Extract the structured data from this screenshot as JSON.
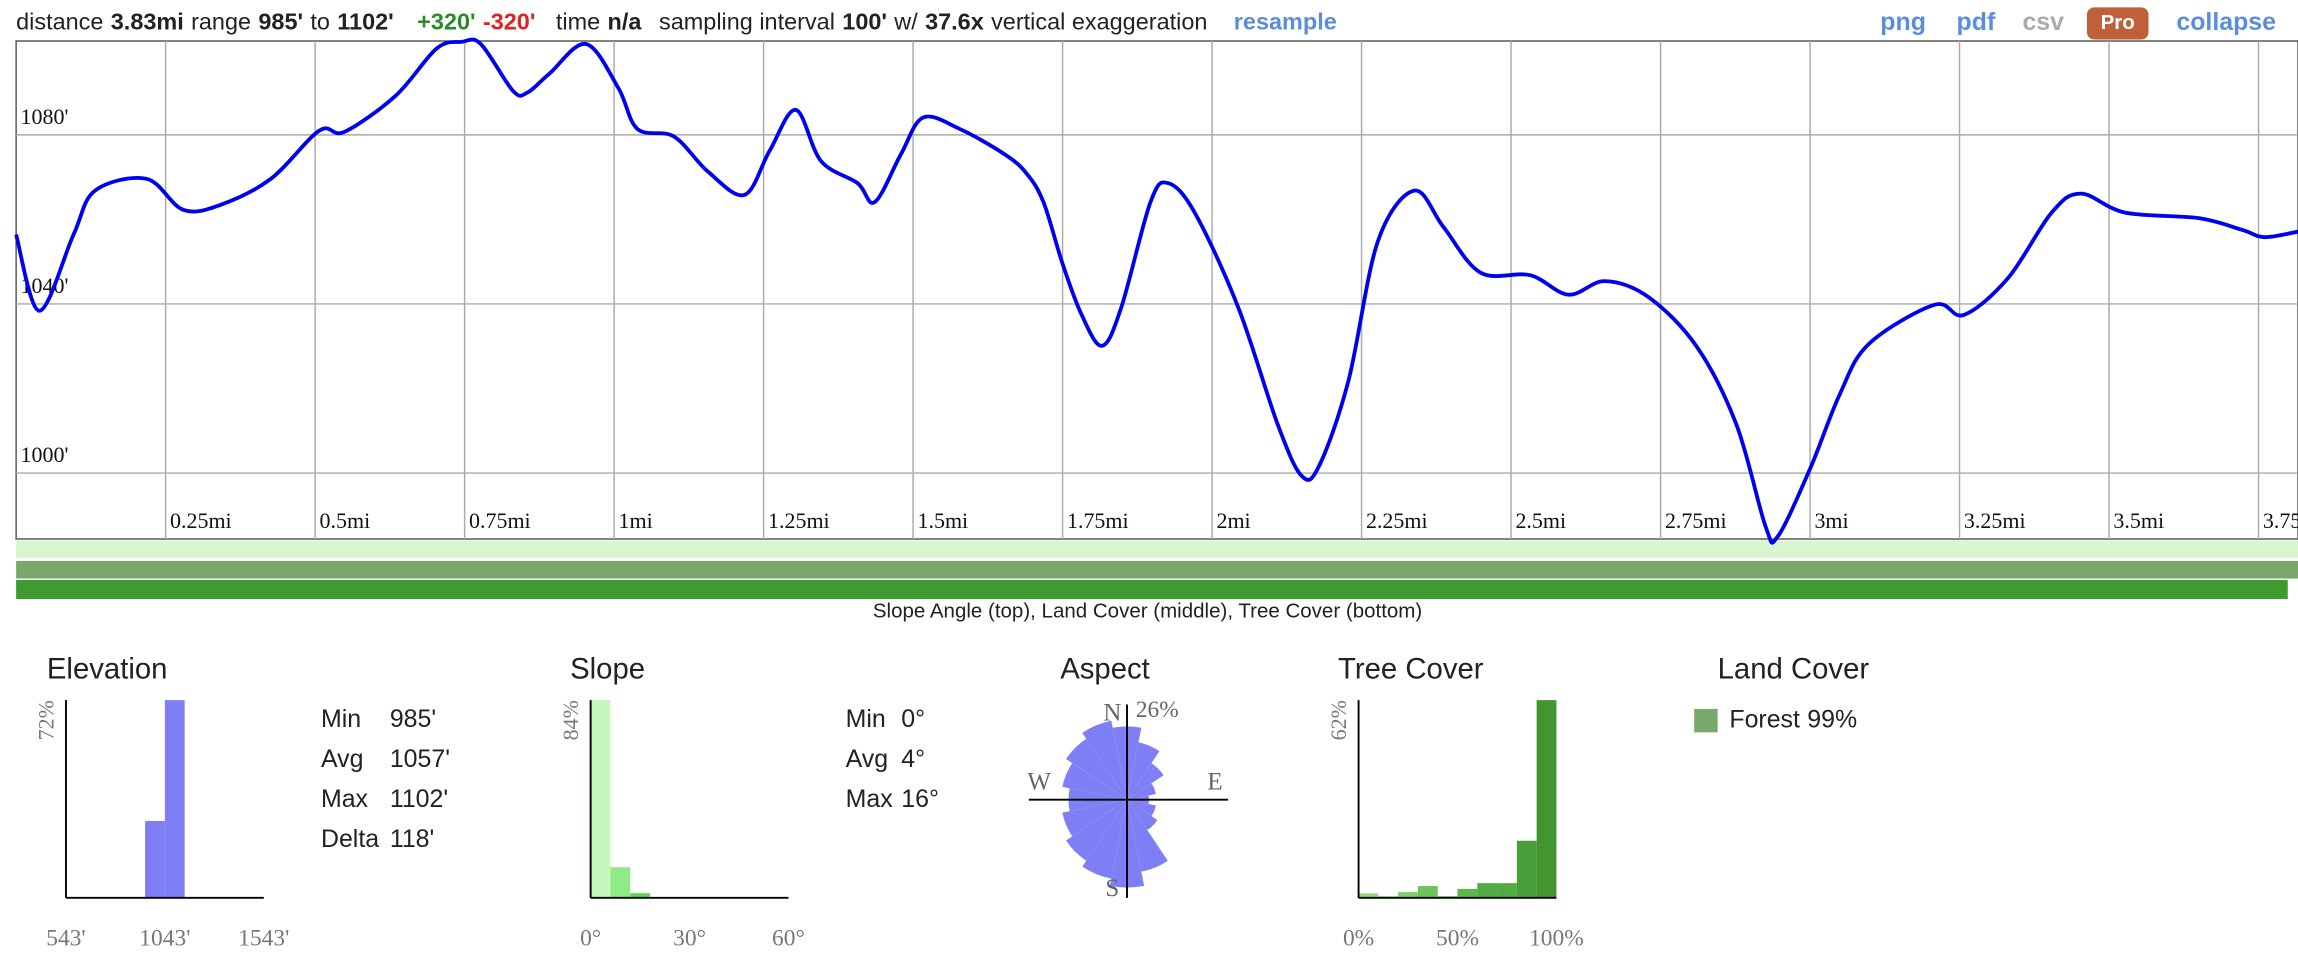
{
  "toolbar": {
    "distance_label": "distance",
    "distance": "3.83mi",
    "range_label": "range",
    "range_min": "985'",
    "to": "to",
    "range_max": "1102'",
    "gain": "+320'",
    "loss": "-320'",
    "time_label": "time",
    "time": "n/a",
    "sampling_label": "sampling interval",
    "sampling": "100'",
    "w": "w/",
    "exaggeration": "37.6x",
    "exaggeration_label": "vertical exaggeration",
    "resample": "resample",
    "links": [
      "png",
      "pdf",
      "csv",
      "Pro",
      "collapse"
    ]
  },
  "chart_data": [
    {
      "type": "line",
      "color": "#0000ee",
      "grid": true,
      "x": [
        0,
        0.039,
        0.096,
        0.132,
        0.218,
        0.279,
        0.341,
        0.426,
        0.507,
        0.549,
        0.635,
        0.703,
        0.745,
        0.777,
        0.831,
        0.855,
        0.892,
        0.953,
        1.007,
        1.039,
        1.1,
        1.157,
        1.218,
        1.26,
        1.304,
        1.346,
        1.407,
        1.436,
        1.48,
        1.517,
        1.578,
        1.652,
        1.689,
        1.718,
        1.75,
        1.782,
        1.816,
        1.848,
        1.897,
        1.926,
        1.971,
        2.044,
        2.11,
        2.15,
        2.179,
        2.228,
        2.277,
        2.338,
        2.387,
        2.449,
        2.532,
        2.596,
        2.657,
        2.73,
        2.811,
        2.877,
        2.926,
        2.946,
        3.0,
        3.049,
        3.098,
        3.208,
        3.257,
        3.331,
        3.404,
        3.453,
        3.527,
        3.65,
        3.723,
        3.76,
        3.816
      ],
      "values": [
        1056.4,
        1038.4,
        1056.4,
        1066.8,
        1069.6,
        1062.3,
        1063.4,
        1069.6,
        1081.0,
        1080.7,
        1089.3,
        1100.4,
        1102,
        1101.5,
        1090.4,
        1090.0,
        1094.5,
        1101.5,
        1091.1,
        1081.4,
        1079.6,
        1071.3,
        1065.8,
        1076.2,
        1085.9,
        1073.8,
        1068.6,
        1064.1,
        1075.5,
        1084.1,
        1081.4,
        1075.5,
        1071.0,
        1064.1,
        1049.5,
        1037.4,
        1030.1,
        1039.1,
        1064.1,
        1068.6,
        1061.6,
        1039.1,
        1011.4,
        999.3,
        1001.7,
        1021.8,
        1054.7,
        1066.8,
        1058.2,
        1047.4,
        1046.8,
        1042.2,
        1045.4,
        1041.6,
        1029.8,
        1011.4,
        987.2,
        985,
        1001.0,
        1018.4,
        1030.5,
        1039.8,
        1037.4,
        1046.1,
        1061.6,
        1066.1,
        1061.6,
        1060.3,
        1057.5,
        1055.8,
        1057.1
      ],
      "xlim": [
        0,
        3.816
      ],
      "ylim": [
        984.4,
        1102.2
      ],
      "xticks": [
        {
          "value": 0.25,
          "label": "0.25mi"
        },
        {
          "value": 0.5,
          "label": "0.5mi"
        },
        {
          "value": 0.75,
          "label": "0.75mi"
        },
        {
          "value": 1,
          "label": "1mi"
        },
        {
          "value": 1.25,
          "label": "1.25mi"
        },
        {
          "value": 1.5,
          "label": "1.5mi"
        },
        {
          "value": 1.75,
          "label": "1.75mi"
        },
        {
          "value": 2,
          "label": "2mi"
        },
        {
          "value": 2.25,
          "label": "2.25mi"
        },
        {
          "value": 2.5,
          "label": "2.5mi"
        },
        {
          "value": 2.75,
          "label": "2.75mi"
        },
        {
          "value": 3,
          "label": "3mi"
        },
        {
          "value": 3.25,
          "label": "3.25mi"
        },
        {
          "value": 3.5,
          "label": "3.5mi"
        },
        {
          "value": 3.75,
          "label": "3.75mi"
        }
      ],
      "yticks": [
        {
          "value": 1000,
          "label": "1000'"
        },
        {
          "value": 1040,
          "label": "1040'"
        },
        {
          "value": 1080,
          "label": "1080'"
        }
      ],
      "caption": "Slope Angle (top), Land Cover (middle), Tree Cover (bottom)"
    },
    {
      "type": "histogram",
      "title": "Elevation",
      "bins": [
        943,
        1043,
        1143
      ],
      "values": [
        28,
        72
      ],
      "colors": [
        "#7f7ff5",
        "#7f7ff5"
      ],
      "xlim": [
        543,
        1543
      ],
      "xticks": [
        {
          "value": 543,
          "label": "543'"
        },
        {
          "value": 1043,
          "label": "1043'"
        },
        {
          "value": 1543,
          "label": "1543'"
        }
      ],
      "ylim": [
        0,
        72
      ],
      "yticks": [
        {
          "value": 72,
          "label": "72%"
        }
      ],
      "stats": [
        {
          "label": "Min",
          "value": "985'"
        },
        {
          "label": "Avg",
          "value": "1057'"
        },
        {
          "label": "Max",
          "value": "1102'"
        },
        {
          "label": "Delta",
          "value": "118'"
        }
      ]
    },
    {
      "type": "histogram",
      "title": "Slope",
      "bins": [
        0,
        6,
        12,
        18
      ],
      "values": [
        84,
        13,
        2
      ],
      "colors": [
        "#c6f7bd",
        "#90ea88",
        "#5fd858"
      ],
      "xlim": [
        0,
        60
      ],
      "xticks": [
        {
          "value": 0,
          "label": "0°"
        },
        {
          "value": 30,
          "label": "30°"
        },
        {
          "value": 60,
          "label": "60°"
        }
      ],
      "ylim": [
        0,
        84
      ],
      "yticks": [
        {
          "value": 84,
          "label": "84%"
        }
      ],
      "stats": [
        {
          "label": "Min",
          "value": "0°"
        },
        {
          "label": "Avg",
          "value": "4°"
        },
        {
          "label": "Max",
          "value": "16°"
        }
      ]
    },
    {
      "type": "rose",
      "title": "Aspect",
      "color": "#7f7ff5",
      "categories": [
        "N",
        null,
        null,
        null,
        "E",
        null,
        null,
        null,
        "S",
        null,
        null,
        null,
        "W",
        null,
        null,
        null
      ],
      "values": [
        21.7,
        17.3,
        13,
        8.7,
        6.5,
        8.7,
        10.8,
        21.7,
        26,
        23.8,
        21.7,
        19.5,
        17.3,
        19.5,
        21.7,
        23.8
      ],
      "rlim": [
        0,
        26
      ],
      "rticks": [
        {
          "value": 26,
          "label": "26%"
        }
      ]
    },
    {
      "type": "histogram",
      "title": "Tree Cover",
      "bins": [
        0,
        10,
        20,
        30,
        40,
        50,
        60,
        70,
        80,
        90,
        100
      ],
      "values": [
        1.4,
        0.5,
        1.8,
        3.7,
        0.5,
        2.8,
        4.6,
        4.6,
        17.9,
        62
      ],
      "colors": [
        "#8fd97f",
        "#8fd97f",
        "#7fcf6c",
        "#6cc35a",
        "#6cc35a",
        "#5cb64b",
        "#52aa42",
        "#52aa42",
        "#4a9e3a",
        "#43952f"
      ],
      "xlim": [
        0,
        100
      ],
      "xticks": [
        {
          "value": 0,
          "label": "0%"
        },
        {
          "value": 50,
          "label": "50%"
        },
        {
          "value": 100,
          "label": "100%"
        }
      ],
      "ylim": [
        0,
        62
      ],
      "yticks": [
        {
          "value": 62,
          "label": "62%"
        }
      ]
    },
    {
      "type": "legend",
      "title": "Land Cover",
      "categories": [
        "Forest"
      ],
      "values": [
        99
      ],
      "value_labels": [
        "99%"
      ],
      "colors": [
        "#78a86a"
      ]
    }
  ]
}
